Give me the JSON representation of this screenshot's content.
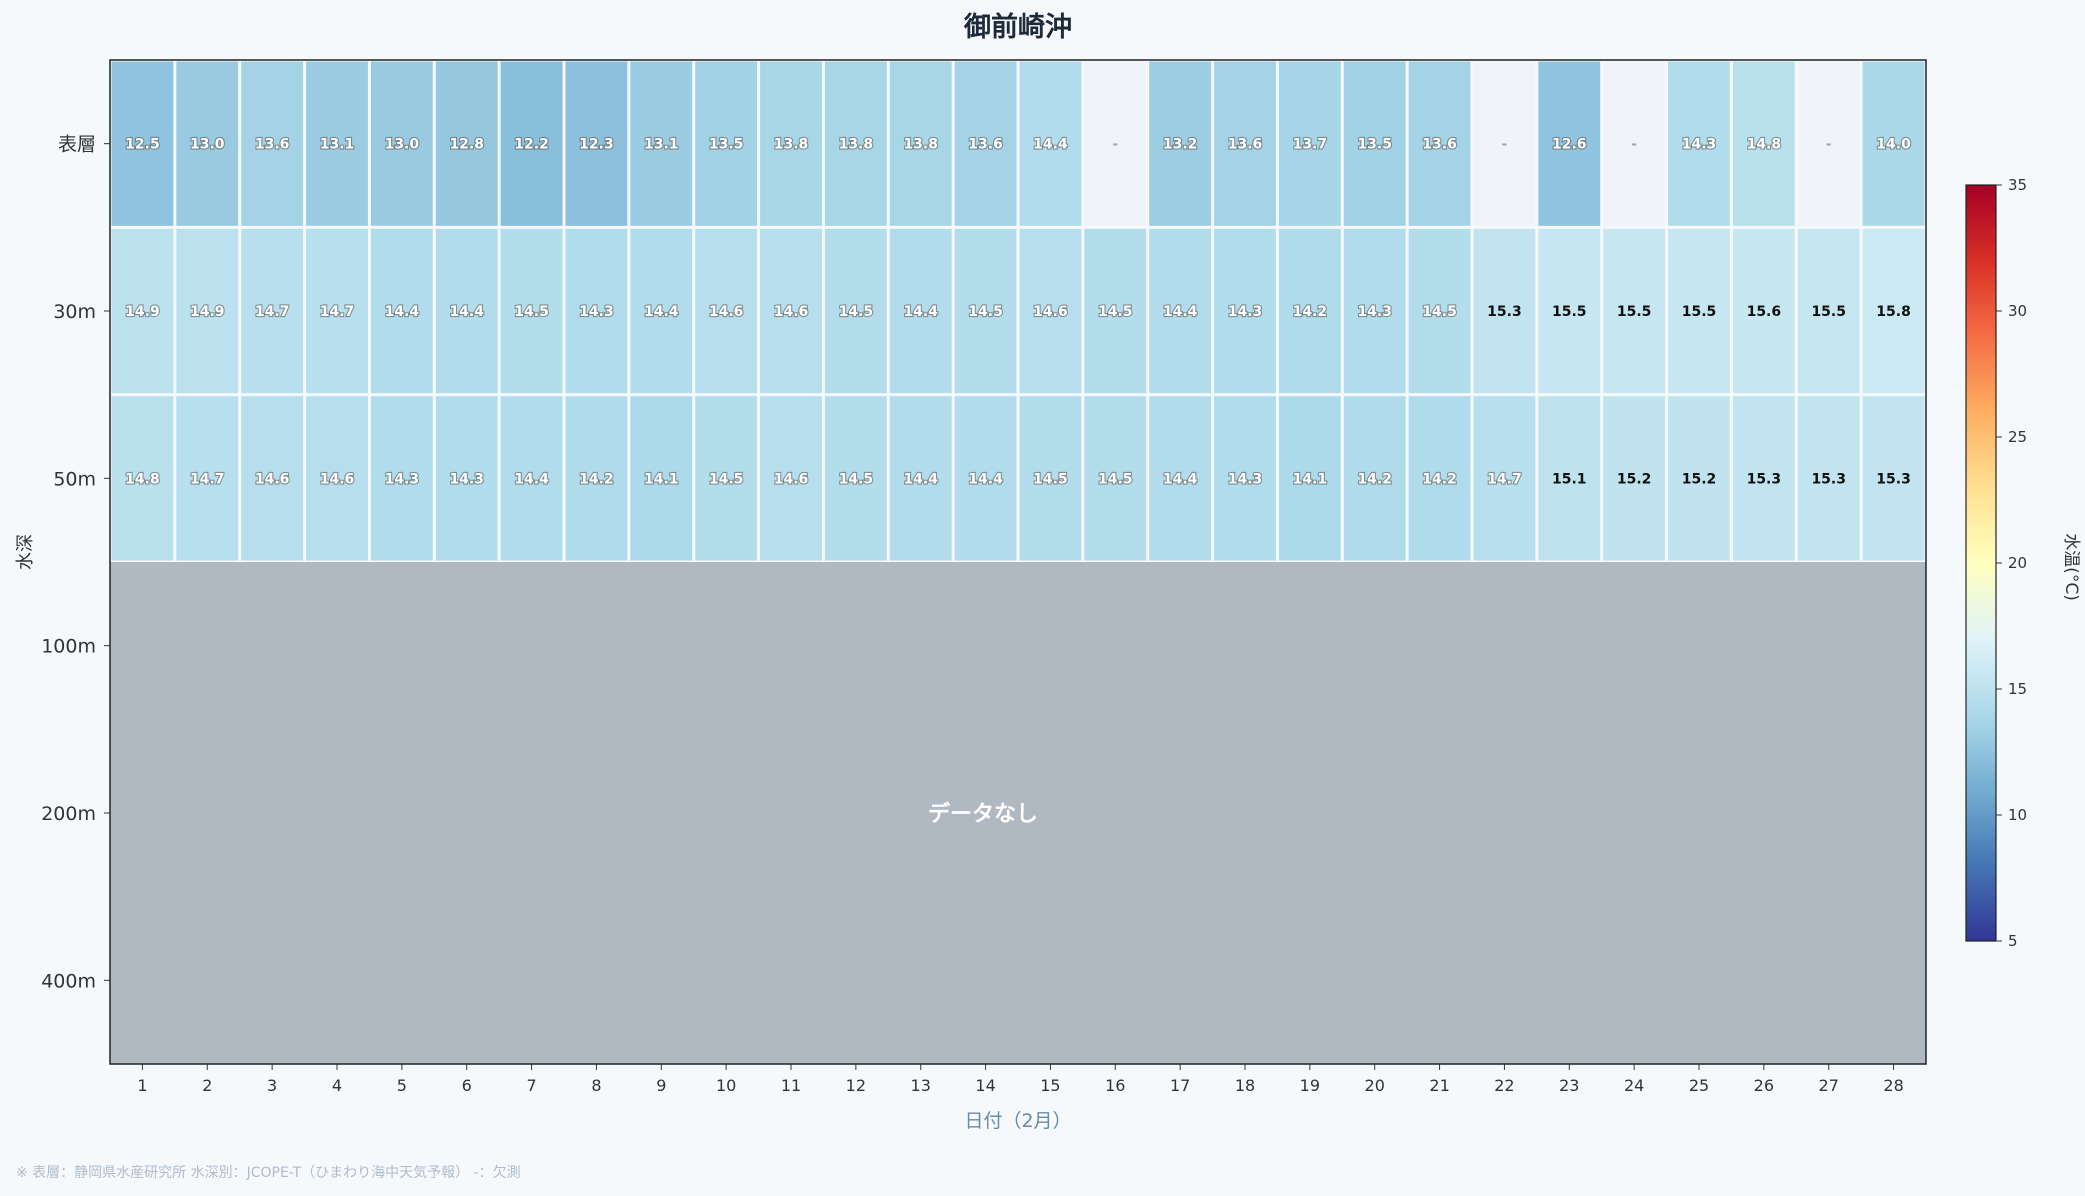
{
  "chart_data": {
    "type": "heatmap",
    "title": "御前崎沖",
    "xlabel": "日付（2月）",
    "ylabel": "水深",
    "x": [
      1,
      2,
      3,
      4,
      5,
      6,
      7,
      8,
      9,
      10,
      11,
      12,
      13,
      14,
      15,
      16,
      17,
      18,
      19,
      20,
      21,
      22,
      23,
      24,
      25,
      26,
      27,
      28
    ],
    "y": [
      "表層",
      "30m",
      "50m",
      "100m",
      "200m",
      "400m"
    ],
    "values": [
      [
        12.5,
        13.0,
        13.6,
        13.1,
        13.0,
        12.8,
        12.2,
        12.3,
        13.1,
        13.5,
        13.8,
        13.8,
        13.8,
        13.6,
        14.4,
        null,
        13.2,
        13.6,
        13.7,
        13.5,
        13.6,
        null,
        12.6,
        null,
        14.3,
        14.8,
        null,
        14.0
      ],
      [
        14.9,
        14.9,
        14.7,
        14.7,
        14.4,
        14.4,
        14.5,
        14.3,
        14.4,
        14.6,
        14.6,
        14.5,
        14.4,
        14.5,
        14.6,
        14.5,
        14.4,
        14.3,
        14.2,
        14.3,
        14.5,
        15.3,
        15.5,
        15.5,
        15.5,
        15.6,
        15.5,
        15.8
      ],
      [
        14.8,
        14.7,
        14.6,
        14.6,
        14.3,
        14.3,
        14.4,
        14.2,
        14.1,
        14.5,
        14.6,
        14.5,
        14.4,
        14.4,
        14.5,
        14.5,
        14.4,
        14.3,
        14.1,
        14.2,
        14.2,
        14.7,
        15.1,
        15.2,
        15.2,
        15.3,
        15.3,
        15.3
      ],
      [
        null,
        null,
        null,
        null,
        null,
        null,
        null,
        null,
        null,
        null,
        null,
        null,
        null,
        null,
        null,
        null,
        null,
        null,
        null,
        null,
        null,
        null,
        null,
        null,
        null,
        null,
        null,
        null
      ],
      [
        null,
        null,
        null,
        null,
        null,
        null,
        null,
        null,
        null,
        null,
        null,
        null,
        null,
        null,
        null,
        null,
        null,
        null,
        null,
        null,
        null,
        null,
        null,
        null,
        null,
        null,
        null,
        null
      ],
      [
        null,
        null,
        null,
        null,
        null,
        null,
        null,
        null,
        null,
        null,
        null,
        null,
        null,
        null,
        null,
        null,
        null,
        null,
        null,
        null,
        null,
        null,
        null,
        null,
        null,
        null,
        null,
        null
      ]
    ],
    "missing_label": "-",
    "no_data_label": "データなし",
    "colorbar": {
      "label": "水温(°C)",
      "range": [
        5,
        35
      ],
      "ticks": [
        5,
        10,
        15,
        20,
        25,
        30,
        35
      ],
      "colormap": "RdYlBu_r"
    },
    "colors": {
      "no_data_fill": "#b0b8c2",
      "missing_fill": "#f0f4fa",
      "title": "#1e2a38",
      "xlabel": "#6a8aa8"
    }
  },
  "footnote": "※ 表層：静岡県水産研究所  水深別：JCOPE-T（ひまわり海中天気予報）  -：欠測"
}
